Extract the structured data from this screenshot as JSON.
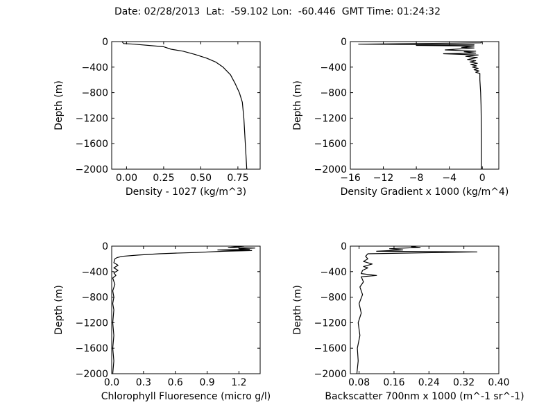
{
  "title": "Date: 02/28/2013  Lat:  -59.102 Lon:  -60.446  GMT Time: 01:24:32",
  "chart_data": [
    {
      "type": "line",
      "xlabel": "Density - 1027 (kg/m^3)",
      "ylabel": "Depth (m)",
      "xlim": [
        -0.1,
        0.9
      ],
      "ylim": [
        -2000,
        0
      ],
      "xticks": [
        0.0,
        0.25,
        0.5,
        0.75
      ],
      "xtick_labels": [
        "0.00",
        "0.25",
        "0.50",
        "0.75"
      ],
      "yticks": [
        0,
        -400,
        -800,
        -1200,
        -1600,
        -2000
      ],
      "ytick_labels": [
        "0",
        "−400",
        "−800",
        "−1200",
        "−1600",
        "−2000"
      ],
      "series": [
        {
          "x": [
            -0.03,
            -0.02,
            0.05,
            0.25,
            0.3,
            0.38,
            0.46,
            0.54,
            0.6,
            0.65,
            0.7,
            0.73,
            0.76,
            0.78,
            0.79,
            0.8,
            0.81
          ],
          "y": [
            0,
            -30,
            -40,
            -80,
            -120,
            -150,
            -200,
            -260,
            -320,
            -400,
            -520,
            -650,
            -800,
            -950,
            -1200,
            -1600,
            -2000
          ]
        }
      ]
    },
    {
      "type": "line",
      "xlabel": "Density Gradient x 1000 (kg/m^4)",
      "ylabel": "Depth (m)",
      "xlim": [
        -16,
        2
      ],
      "ylim": [
        -2000,
        0
      ],
      "xticks": [
        -16,
        -12,
        -8,
        -4,
        0
      ],
      "xtick_labels": [
        "−16",
        "−12",
        "−8",
        "−4",
        "0"
      ],
      "yticks": [
        0,
        -400,
        -800,
        -1200,
        -1600,
        -2000
      ],
      "ytick_labels": [
        "0",
        "−400",
        "−800",
        "−1200",
        "−1600",
        "−2000"
      ],
      "series": [
        {
          "x": [
            0,
            -0.2,
            -15,
            -1,
            -8,
            -1,
            -2.5,
            -1,
            -4.5,
            -0.8,
            -2.2,
            -0.8,
            -4.7,
            -0.5,
            -2,
            -0.6,
            -1.8,
            -0.8,
            -1.5,
            -0.6,
            -1.4,
            -0.7,
            -1.2,
            -0.5,
            -1,
            -0.4,
            -0.8,
            -0.3,
            -0.3,
            -0.2,
            -0.15,
            -0.1,
            -0.1
          ],
          "y": [
            0,
            -20,
            -40,
            -50,
            -60,
            -70,
            -90,
            -100,
            -130,
            -150,
            -160,
            -180,
            -190,
            -210,
            -230,
            -250,
            -280,
            -300,
            -320,
            -340,
            -360,
            -380,
            -400,
            -420,
            -440,
            -460,
            -480,
            -500,
            -600,
            -800,
            -1000,
            -1500,
            -2000
          ]
        }
      ]
    },
    {
      "type": "line",
      "xlabel": "Chlorophyll Fluoresence (micro g/l)",
      "ylabel": "Depth (m)",
      "xlim": [
        0,
        1.4
      ],
      "ylim": [
        -2000,
        0
      ],
      "xticks": [
        0.0,
        0.3,
        0.6,
        0.9,
        1.2
      ],
      "xtick_labels": [
        "0.0",
        "0.3",
        "0.6",
        "0.9",
        "1.2"
      ],
      "yticks": [
        0,
        -400,
        -800,
        -1200,
        -1600,
        -2000
      ],
      "ytick_labels": [
        "0",
        "−400",
        "−800",
        "−1200",
        "−1600",
        "−2000"
      ],
      "series": [
        {
          "x": [
            1.25,
            1.1,
            1.35,
            1.2,
            1.3,
            1.0,
            1.32,
            1.05,
            0.8,
            0.6,
            0.45,
            0.25,
            0.1,
            0.05,
            0.03,
            0.02,
            0.06,
            0.02,
            0.06,
            0.02,
            0.04,
            0.01,
            0.03,
            0.01,
            0.02,
            0.01,
            0.02,
            0.01,
            0.02,
            0.01,
            0.02,
            0.01
          ],
          "y": [
            0,
            -20,
            -30,
            -40,
            -50,
            -60,
            -70,
            -80,
            -100,
            -110,
            -120,
            -140,
            -160,
            -180,
            -200,
            -260,
            -300,
            -340,
            -380,
            -420,
            -460,
            -500,
            -600,
            -700,
            -800,
            -900,
            -1000,
            -1200,
            -1400,
            -1600,
            -1800,
            -2000
          ]
        }
      ]
    },
    {
      "type": "line",
      "xlabel": "Backscatter 700nm x 1000 (m^-1 sr^-1)",
      "ylabel": "Depth (m)",
      "xlim": [
        0.06,
        0.4
      ],
      "ylim": [
        -2000,
        0
      ],
      "xticks": [
        0.08,
        0.16,
        0.24,
        0.32,
        0.4
      ],
      "xtick_labels": [
        "0.08",
        "0.16",
        "0.24",
        "0.32",
        "0.40"
      ],
      "yticks": [
        0,
        -400,
        -800,
        -1200,
        -1600,
        -2000
      ],
      "ytick_labels": [
        "0",
        "−400",
        "−800",
        "−1200",
        "−1600",
        "−2000"
      ],
      "series": [
        {
          "x": [
            0.21,
            0.2,
            0.22,
            0.15,
            0.18,
            0.12,
            0.35,
            0.1,
            0.095,
            0.1,
            0.09,
            0.11,
            0.09,
            0.1,
            0.088,
            0.085,
            0.12,
            0.085,
            0.09,
            0.082,
            0.088,
            0.08,
            0.085,
            0.078,
            0.082,
            0.076,
            0.078,
            0.075
          ],
          "y": [
            0,
            -10,
            -20,
            -40,
            -60,
            -80,
            -90,
            -120,
            -160,
            -200,
            -240,
            -280,
            -320,
            -340,
            -380,
            -430,
            -460,
            -480,
            -560,
            -640,
            -760,
            -900,
            -1050,
            -1200,
            -1400,
            -1600,
            -1800,
            -2000
          ]
        }
      ]
    }
  ]
}
